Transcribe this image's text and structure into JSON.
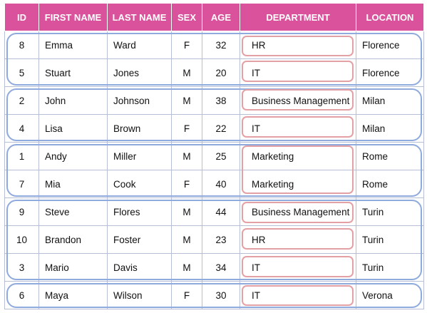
{
  "table": {
    "columns": [
      "ID",
      "FIRST NAME",
      "LAST NAME",
      "SEX",
      "AGE",
      "DEPARTMENT",
      "LOCATION"
    ],
    "rows": [
      {
        "id": "8",
        "first_name": "Emma",
        "last_name": "Ward",
        "sex": "F",
        "age": "32",
        "department": "HR",
        "location": "Florence"
      },
      {
        "id": "5",
        "first_name": "Stuart",
        "last_name": "Jones",
        "sex": "M",
        "age": "20",
        "department": "IT",
        "location": "Florence"
      },
      {
        "id": "2",
        "first_name": "John",
        "last_name": "Johnson",
        "sex": "M",
        "age": "38",
        "department": "Business Management",
        "location": "Milan"
      },
      {
        "id": "4",
        "first_name": "Lisa",
        "last_name": "Brown",
        "sex": "F",
        "age": "22",
        "department": "IT",
        "location": "Milan"
      },
      {
        "id": "1",
        "first_name": "Andy",
        "last_name": "Miller",
        "sex": "M",
        "age": "25",
        "department": "Marketing",
        "location": "Rome"
      },
      {
        "id": "7",
        "first_name": "Mia",
        "last_name": "Cook",
        "sex": "F",
        "age": "40",
        "department": "Marketing",
        "location": "Rome"
      },
      {
        "id": "9",
        "first_name": "Steve",
        "last_name": "Flores",
        "sex": "M",
        "age": "44",
        "department": "Business Management",
        "location": "Turin"
      },
      {
        "id": "10",
        "first_name": "Brandon",
        "last_name": "Foster",
        "sex": "M",
        "age": "23",
        "department": "HR",
        "location": "Turin"
      },
      {
        "id": "3",
        "first_name": "Mario",
        "last_name": "Davis",
        "sex": "M",
        "age": "34",
        "department": "IT",
        "location": "Turin"
      },
      {
        "id": "6",
        "first_name": "Maya",
        "last_name": "Wilson",
        "sex": "F",
        "age": "30",
        "department": "IT",
        "location": "Verona"
      }
    ]
  },
  "colors": {
    "header_background": "#d9529b",
    "header_text": "#ffffff",
    "grid_line": "#b7bfd6",
    "location_group_outline": "#8faadc",
    "department_group_outline": "#e3a1a6"
  }
}
